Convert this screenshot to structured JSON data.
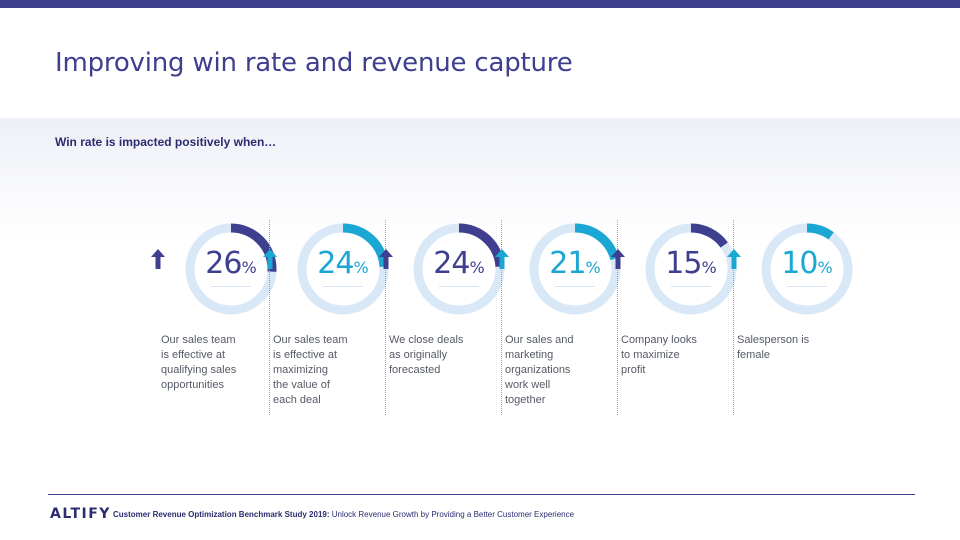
{
  "title": "Improving win rate and revenue capture",
  "subtitle": "Win rate is impacted positively when…",
  "colors": {
    "dark": "#3e3f8f",
    "light": "#1aa7d4",
    "track": "#d8e8f6"
  },
  "stats": [
    {
      "value": "26",
      "fraction": 0.26,
      "color": "dark",
      "lines": [
        "Our sales team",
        "is effective at",
        "qualifying sales",
        "opportunities"
      ]
    },
    {
      "value": "24",
      "fraction": 0.24,
      "color": "light",
      "lines": [
        "Our sales team",
        "is effective at",
        "maximizing",
        "the value of",
        "each deal"
      ]
    },
    {
      "value": "24",
      "fraction": 0.24,
      "color": "dark",
      "lines": [
        "We close deals",
        "as originally",
        "forecasted"
      ]
    },
    {
      "value": "21",
      "fraction": 0.21,
      "color": "light",
      "lines": [
        "Our sales and",
        "marketing",
        "organizations",
        "work well",
        "together"
      ]
    },
    {
      "value": "15",
      "fraction": 0.15,
      "color": "dark",
      "lines": [
        "Company looks",
        "to maximize",
        "profit"
      ]
    },
    {
      "value": "10",
      "fraction": 0.1,
      "color": "light",
      "lines": [
        "Salesperson is",
        "female"
      ]
    }
  ],
  "percent_sign": "%",
  "footer": {
    "logo": "ALTIFY",
    "study_bold": "Customer Revenue Optimization Benchmark Study 2019:",
    "study_rest": " Unlock Revenue Growth by Providing a Better Customer Experience"
  }
}
